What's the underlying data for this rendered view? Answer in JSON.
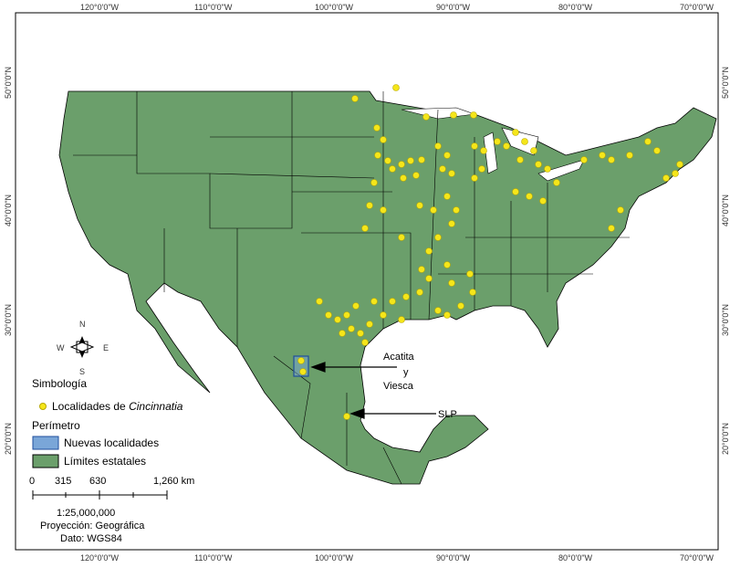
{
  "longitude_labels": [
    "120°0'0\"W",
    "110°0'0\"W",
    "100°0'0\"W",
    "90°0'0\"W",
    "80°0'0\"W",
    "70°0'0\"W"
  ],
  "latitude_labels": [
    "50°0'0\"N",
    "40°0'0\"N",
    "30°0'0\"N",
    "20°0'0\"N"
  ],
  "compass": {
    "north": "N",
    "south": "S",
    "east": "E",
    "west": "W"
  },
  "legend": {
    "title": "Simbología",
    "points_label": "Localidades de ",
    "points_taxon": "Cincinnatia",
    "perimeter_title": "Perímetro",
    "new_localities": "Nuevas localidades",
    "state_limits": "Límites estatales"
  },
  "scale": {
    "ticks": [
      "0",
      "315",
      "630",
      "1,260 km"
    ],
    "ratio": "1:25,000,000",
    "projection": "Proyección: Geográfica",
    "datum": "Dato: WGS84"
  },
  "annotations": {
    "acatita": "Acatita",
    "y": "y",
    "viesca": "Viesca",
    "slp": "SLP"
  }
}
